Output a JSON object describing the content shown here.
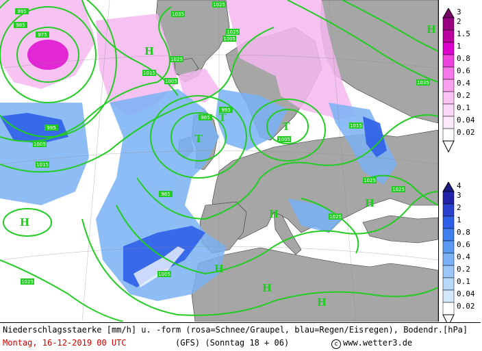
{
  "caption": {
    "line1": "Niederschlagsstaerke [mm/h] u. -form (rosa=Schnee/Graupel, blau=Regen/Eisregen), Bodendr.[hPa]",
    "date": "Montag, 16-12-2019  00 UTC",
    "model": "(GFS)  (Sonntag 18 + 06)",
    "copyright": "www.wetter3.de"
  },
  "legend": {
    "snow_scale": {
      "labels": [
        "3",
        "2",
        "1.5",
        "1",
        "0.8",
        "0.6",
        "0.4",
        "0.2",
        "0.1",
        "0.04",
        "0.02"
      ],
      "colors": [
        "#7a0066",
        "#990080",
        "#bb00a0",
        "#dd00cc",
        "#ee44dd",
        "#f577e8",
        "#f8a0ee",
        "#fbc2f4",
        "#fcd8f8",
        "#fde9fb",
        "#ffffff"
      ]
    },
    "rain_scale": {
      "labels": [
        "4",
        "3",
        "2",
        "1",
        "0.8",
        "0.6",
        "0.4",
        "0.2",
        "0.1",
        "0.04",
        "0.02"
      ],
      "colors": [
        "#1a1a80",
        "#2222a8",
        "#2a3fcc",
        "#2f5fe8",
        "#3f7fee",
        "#5a9af2",
        "#7ab2f5",
        "#9ac6f8",
        "#b8d8fa",
        "#d4e8fc",
        "#ffffff"
      ]
    }
  },
  "map": {
    "colors": {
      "sea": "#ffffff",
      "land": "#a6a6a6",
      "isobar": "#22cc22",
      "snow": "#f5b8f0",
      "rain": "#6a9cf0"
    },
    "isobar_labels": [
      "995",
      "985",
      "975",
      "1035",
      "1025",
      "1015",
      "1005",
      "985",
      "995",
      "1005",
      "1015",
      "1025",
      "1035",
      "985",
      "995",
      "1005",
      "1015",
      "1025",
      "1005",
      "1025",
      "1025",
      "1005",
      "1025",
      "1025"
    ],
    "pressure_centers": [
      "H",
      "H",
      "H",
      "H",
      "H",
      "H",
      "H",
      "H",
      "T",
      "T",
      "T"
    ]
  }
}
